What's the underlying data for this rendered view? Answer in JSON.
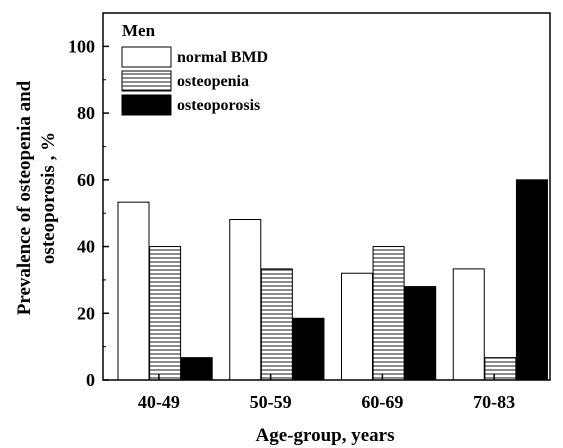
{
  "chart_data": {
    "type": "bar",
    "categories": [
      "40-49",
      "50-59",
      "60-69",
      "70-83"
    ],
    "series": [
      {
        "name": "normal BMD",
        "values": [
          53.3,
          48.1,
          32.0,
          33.3
        ]
      },
      {
        "name": "osteopenia",
        "values": [
          40.0,
          33.3,
          40.0,
          6.7
        ]
      },
      {
        "name": "osteoporosis",
        "values": [
          6.7,
          18.5,
          28.0,
          60.0
        ]
      }
    ],
    "series_fill": [
      "white",
      "horizontal-lines",
      "black"
    ],
    "legend_title": "Men",
    "legend_position": "top-left",
    "xlabel": "Age-group, years",
    "ylabel_lines": [
      "Prevalence of osteopenia and",
      "osteoporosis , %"
    ],
    "ylim": [
      0,
      110
    ],
    "yticks": [
      0,
      20,
      40,
      60,
      80,
      100
    ],
    "grid": false
  }
}
